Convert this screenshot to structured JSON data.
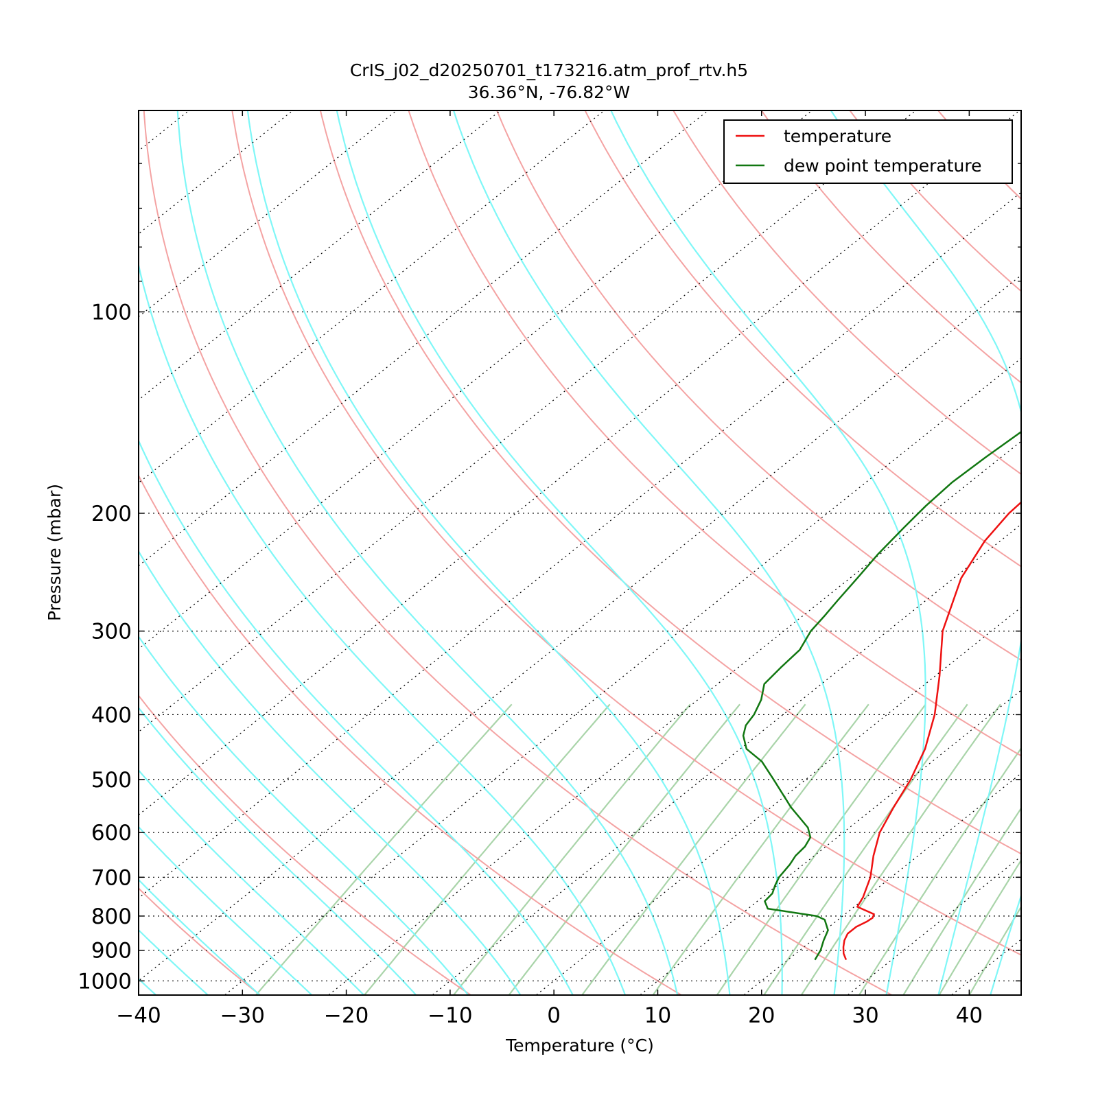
{
  "title": "CrIS_j02_d20250701_t173216.atm_prof_rtv.h5",
  "subtitle": "36.36°N, -76.82°W",
  "chart_data": {
    "type": "line",
    "chart_kind": "skew-T log-P diagram",
    "title": "CrIS_j02_d20250701_t173216.atm_prof_rtv.h5",
    "subtitle": "36.36°N, -76.82°W",
    "xlabel": "Temperature (°C)",
    "ylabel": "Pressure (mbar)",
    "xlim": [
      -40,
      45
    ],
    "ylim": [
      1050,
      50
    ],
    "yscale": "log",
    "x_ticks": [
      "−40",
      "−30",
      "−20",
      "−10",
      "0",
      "10",
      "20",
      "30",
      "40"
    ],
    "y_ticks": [
      "100",
      "200",
      "300",
      "400",
      "500",
      "600",
      "700",
      "800",
      "900",
      "1000"
    ],
    "grid": true,
    "legend_position": "top-right",
    "colors": {
      "temperature": "#ee1111",
      "dewpoint": "#117711",
      "dry_adiabat": "#f4a3a3",
      "moist_adiabat": "#7ff7f7",
      "mixing_ratio": "#a9d4a9",
      "grid": "#000000"
    },
    "series": [
      {
        "name": "temperature",
        "points": [
          {
            "p": 930,
            "t": 25.6
          },
          {
            "p": 910,
            "t": 24.6
          },
          {
            "p": 890,
            "t": 23.8
          },
          {
            "p": 870,
            "t": 23.1
          },
          {
            "p": 850,
            "t": 22.6
          },
          {
            "p": 830,
            "t": 22.6
          },
          {
            "p": 815,
            "t": 23.0
          },
          {
            "p": 805,
            "t": 23.1
          },
          {
            "p": 795,
            "t": 22.8
          },
          {
            "p": 775,
            "t": 20.3
          },
          {
            "p": 750,
            "t": 19.7
          },
          {
            "p": 700,
            "t": 18.0
          },
          {
            "p": 650,
            "t": 15.7
          },
          {
            "p": 600,
            "t": 13.5
          },
          {
            "p": 550,
            "t": 11.8
          },
          {
            "p": 500,
            "t": 10.1
          },
          {
            "p": 450,
            "t": 7.8
          },
          {
            "p": 400,
            "t": 4.6
          },
          {
            "p": 350,
            "t": 0.4
          },
          {
            "p": 300,
            "t": -4.7
          },
          {
            "p": 250,
            "t": -9.3
          },
          {
            "p": 220,
            "t": -11.5
          },
          {
            "p": 200,
            "t": -12.5
          },
          {
            "p": 185,
            "t": -12.8
          },
          {
            "p": 170,
            "t": -12.7
          },
          {
            "p": 155,
            "t": -12.2
          },
          {
            "p": 140,
            "t": -11.3
          },
          {
            "p": 125,
            "t": -9.8
          },
          {
            "p": 110,
            "t": -7.7
          },
          {
            "p": 100,
            "t": -6.1
          },
          {
            "p": 90,
            "t": -4.3
          },
          {
            "p": 80,
            "t": -1.8
          },
          {
            "p": 70,
            "t": 1.3
          },
          {
            "p": 63,
            "t": 3.6
          },
          {
            "p": 57,
            "t": 5.8
          },
          {
            "p": 52,
            "t": 7.6
          },
          {
            "p": 50,
            "t": 8.3
          }
        ]
      },
      {
        "name": "dew point temperature",
        "points": [
          {
            "p": 930,
            "t": 22.6
          },
          {
            "p": 900,
            "t": 22.0
          },
          {
            "p": 870,
            "t": 21.1
          },
          {
            "p": 840,
            "t": 20.3
          },
          {
            "p": 810,
            "t": 18.7
          },
          {
            "p": 800,
            "t": 17.5
          },
          {
            "p": 780,
            "t": 11.9
          },
          {
            "p": 760,
            "t": 10.7
          },
          {
            "p": 740,
            "t": 10.5
          },
          {
            "p": 720,
            "t": 9.8
          },
          {
            "p": 700,
            "t": 9.2
          },
          {
            "p": 670,
            "t": 8.7
          },
          {
            "p": 650,
            "t": 8.2
          },
          {
            "p": 630,
            "t": 8.0
          },
          {
            "p": 610,
            "t": 7.4
          },
          {
            "p": 590,
            "t": 6.0
          },
          {
            "p": 550,
            "t": 1.9
          },
          {
            "p": 500,
            "t": -3.1
          },
          {
            "p": 470,
            "t": -6.4
          },
          {
            "p": 450,
            "t": -9.4
          },
          {
            "p": 430,
            "t": -11.3
          },
          {
            "p": 415,
            "t": -12.3
          },
          {
            "p": 400,
            "t": -12.8
          },
          {
            "p": 380,
            "t": -13.9
          },
          {
            "p": 360,
            "t": -15.5
          },
          {
            "p": 340,
            "t": -15.9
          },
          {
            "p": 320,
            "t": -16.2
          },
          {
            "p": 300,
            "t": -17.4
          },
          {
            "p": 285,
            "t": -17.9
          },
          {
            "p": 270,
            "t": -18.5
          },
          {
            "p": 250,
            "t": -19.3
          },
          {
            "p": 230,
            "t": -20.2
          },
          {
            "p": 210,
            "t": -20.9
          },
          {
            "p": 195,
            "t": -21.4
          },
          {
            "p": 180,
            "t": -21.7
          },
          {
            "p": 165,
            "t": -21.5
          },
          {
            "p": 150,
            "t": -21.1
          },
          {
            "p": 135,
            "t": -20.2
          },
          {
            "p": 120,
            "t": -18.5
          },
          {
            "p": 110,
            "t": -17.1
          },
          {
            "p": 100,
            "t": -15.5
          },
          {
            "p": 90,
            "t": -13.6
          },
          {
            "p": 80,
            "t": -11.3
          },
          {
            "p": 70,
            "t": -8.3
          },
          {
            "p": 60,
            "t": -4.6
          },
          {
            "p": 50,
            "t": -0.6
          }
        ]
      }
    ],
    "legend": [
      "temperature",
      "dew point temperature"
    ]
  }
}
